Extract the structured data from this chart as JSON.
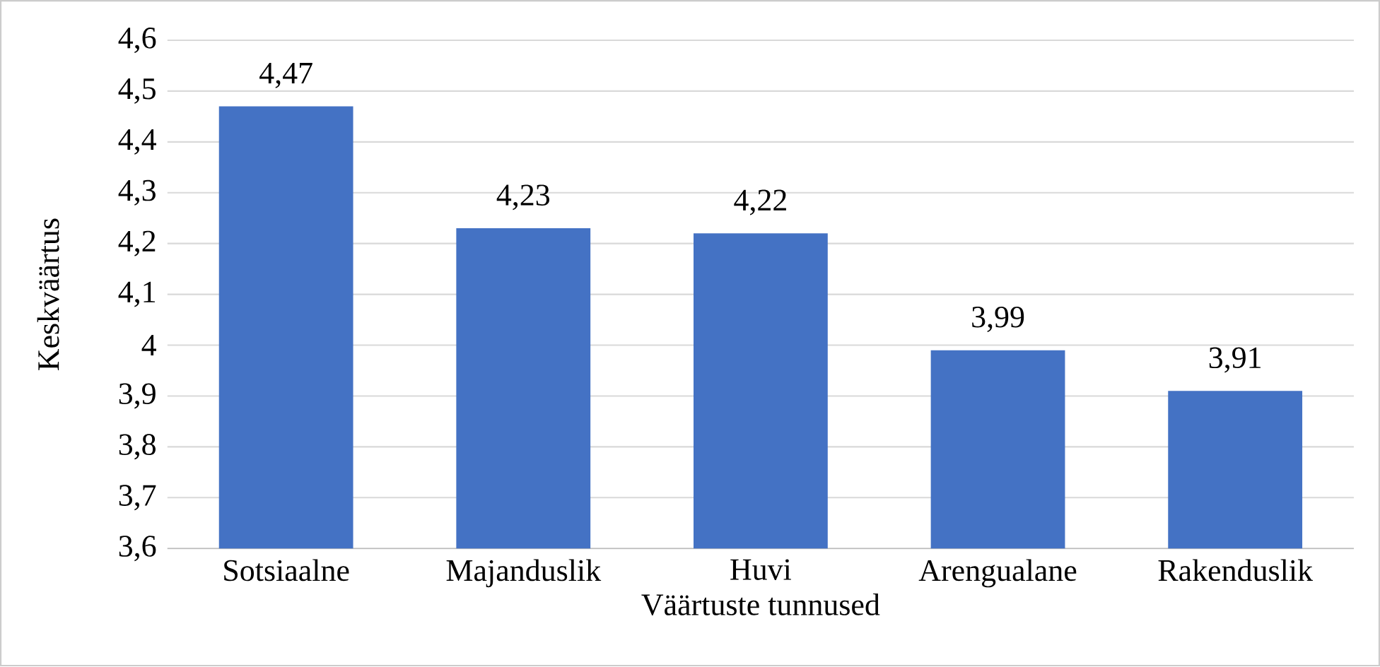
{
  "chart_data": {
    "type": "bar",
    "xlabel": "Väärtuste tunnused",
    "ylabel": "Keskväärtus",
    "categories": [
      "Sotsiaalne",
      "Majanduslik",
      "Huvi",
      "Arengualane",
      "Rakenduslik"
    ],
    "values": [
      4.47,
      4.23,
      4.22,
      3.99,
      3.91
    ],
    "value_labels": [
      "4,47",
      "4,23",
      "4,22",
      "3,99",
      "3,91"
    ],
    "color": "#4472c4",
    "ylim": [
      3.6,
      4.6
    ],
    "yticks": [
      {
        "value": 3.6,
        "label": "3,6"
      },
      {
        "value": 3.7,
        "label": "3,7"
      },
      {
        "value": 3.8,
        "label": "3,8"
      },
      {
        "value": 3.9,
        "label": "3,9"
      },
      4,
      {
        "value": 4.1,
        "label": "4,1"
      },
      {
        "value": 4.2,
        "label": "4,2"
      },
      {
        "value": 4.3,
        "label": "4,3"
      },
      {
        "value": 4.4,
        "label": "4,4"
      },
      {
        "value": 4.5,
        "label": "4,5"
      },
      {
        "value": 4.6,
        "label": "4,6"
      }
    ],
    "grid": "y"
  }
}
